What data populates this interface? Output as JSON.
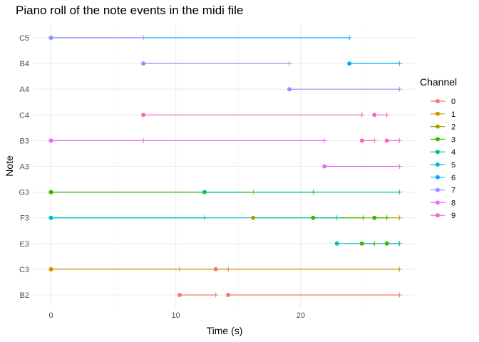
{
  "chart_data": {
    "type": "line",
    "title": "Piano roll of the note events in the midi file",
    "xlabel": "Time (s)",
    "ylabel": "Note",
    "xlim": [
      -1.4,
      29.2
    ],
    "x_ticks": [
      0,
      10,
      20
    ],
    "x_minor": [
      5,
      15,
      25
    ],
    "notes": [
      "B2",
      "C3",
      "E3",
      "F3",
      "G3",
      "A3",
      "B3",
      "C4",
      "A4",
      "B4",
      "C5"
    ],
    "grid": true,
    "legend": {
      "title": "Channel",
      "placement": "right",
      "entries": [
        "0",
        "1",
        "2",
        "3",
        "4",
        "5",
        "6",
        "7",
        "8",
        "9"
      ]
    },
    "channel_colors": {
      "0": "#F8766D",
      "1": "#D89000",
      "2": "#A3A500",
      "3": "#39B600",
      "4": "#00BF7D",
      "5": "#00BFC4",
      "6": "#00B0F6",
      "7": "#9590FF",
      "8": "#E76BF3",
      "9": "#FF62BC"
    },
    "series": [
      {
        "channel": "0",
        "note": "B2",
        "start": 10.3,
        "end": 13.2
      },
      {
        "channel": "0",
        "note": "B2",
        "start": 14.2,
        "end": 27.9
      },
      {
        "channel": "0",
        "note": "C3",
        "start": 13.2,
        "end": 14.2
      },
      {
        "channel": "1",
        "note": "C3",
        "start": 0.0,
        "end": 10.3
      },
      {
        "channel": "1",
        "note": "C3",
        "start": 0.0,
        "end": 27.9
      },
      {
        "channel": "2",
        "note": "G3",
        "start": 0.0,
        "end": 16.2
      },
      {
        "channel": "2",
        "note": "F3",
        "start": 16.2,
        "end": 27.9
      },
      {
        "channel": "3",
        "note": "G3",
        "start": 0.0,
        "end": 21.0
      },
      {
        "channel": "3",
        "note": "F3",
        "start": 21.0,
        "end": 25.0
      },
      {
        "channel": "3",
        "note": "F3",
        "start": 25.9,
        "end": 26.9
      },
      {
        "channel": "3",
        "note": "E3",
        "start": 24.9,
        "end": 25.9
      },
      {
        "channel": "3",
        "note": "E3",
        "start": 26.9,
        "end": 27.9
      },
      {
        "channel": "4",
        "note": "G3",
        "start": 12.3,
        "end": 27.9
      },
      {
        "channel": "5",
        "note": "F3",
        "start": 0.0,
        "end": 12.3
      },
      {
        "channel": "5",
        "note": "F3",
        "start": 0.0,
        "end": 22.9
      },
      {
        "channel": "5",
        "note": "E3",
        "start": 22.9,
        "end": 27.9
      },
      {
        "channel": "6",
        "note": "C5",
        "start": 0.0,
        "end": 23.9
      },
      {
        "channel": "6",
        "note": "B4",
        "start": 23.9,
        "end": 27.9
      },
      {
        "channel": "7",
        "note": "C5",
        "start": 0.0,
        "end": 7.4
      },
      {
        "channel": "7",
        "note": "B4",
        "start": 7.4,
        "end": 19.1
      },
      {
        "channel": "7",
        "note": "A4",
        "start": 19.1,
        "end": 27.9
      },
      {
        "channel": "8",
        "note": "B3",
        "start": 0.0,
        "end": 7.4
      },
      {
        "channel": "8",
        "note": "B3",
        "start": 0.0,
        "end": 21.9
      },
      {
        "channel": "8",
        "note": "A3",
        "start": 21.9,
        "end": 27.9
      },
      {
        "channel": "9",
        "note": "C4",
        "start": 7.4,
        "end": 24.9
      },
      {
        "channel": "9",
        "note": "C4",
        "start": 25.9,
        "end": 26.9
      },
      {
        "channel": "9",
        "note": "B3",
        "start": 24.9,
        "end": 25.9
      },
      {
        "channel": "9",
        "note": "B3",
        "start": 26.9,
        "end": 27.9
      }
    ]
  }
}
